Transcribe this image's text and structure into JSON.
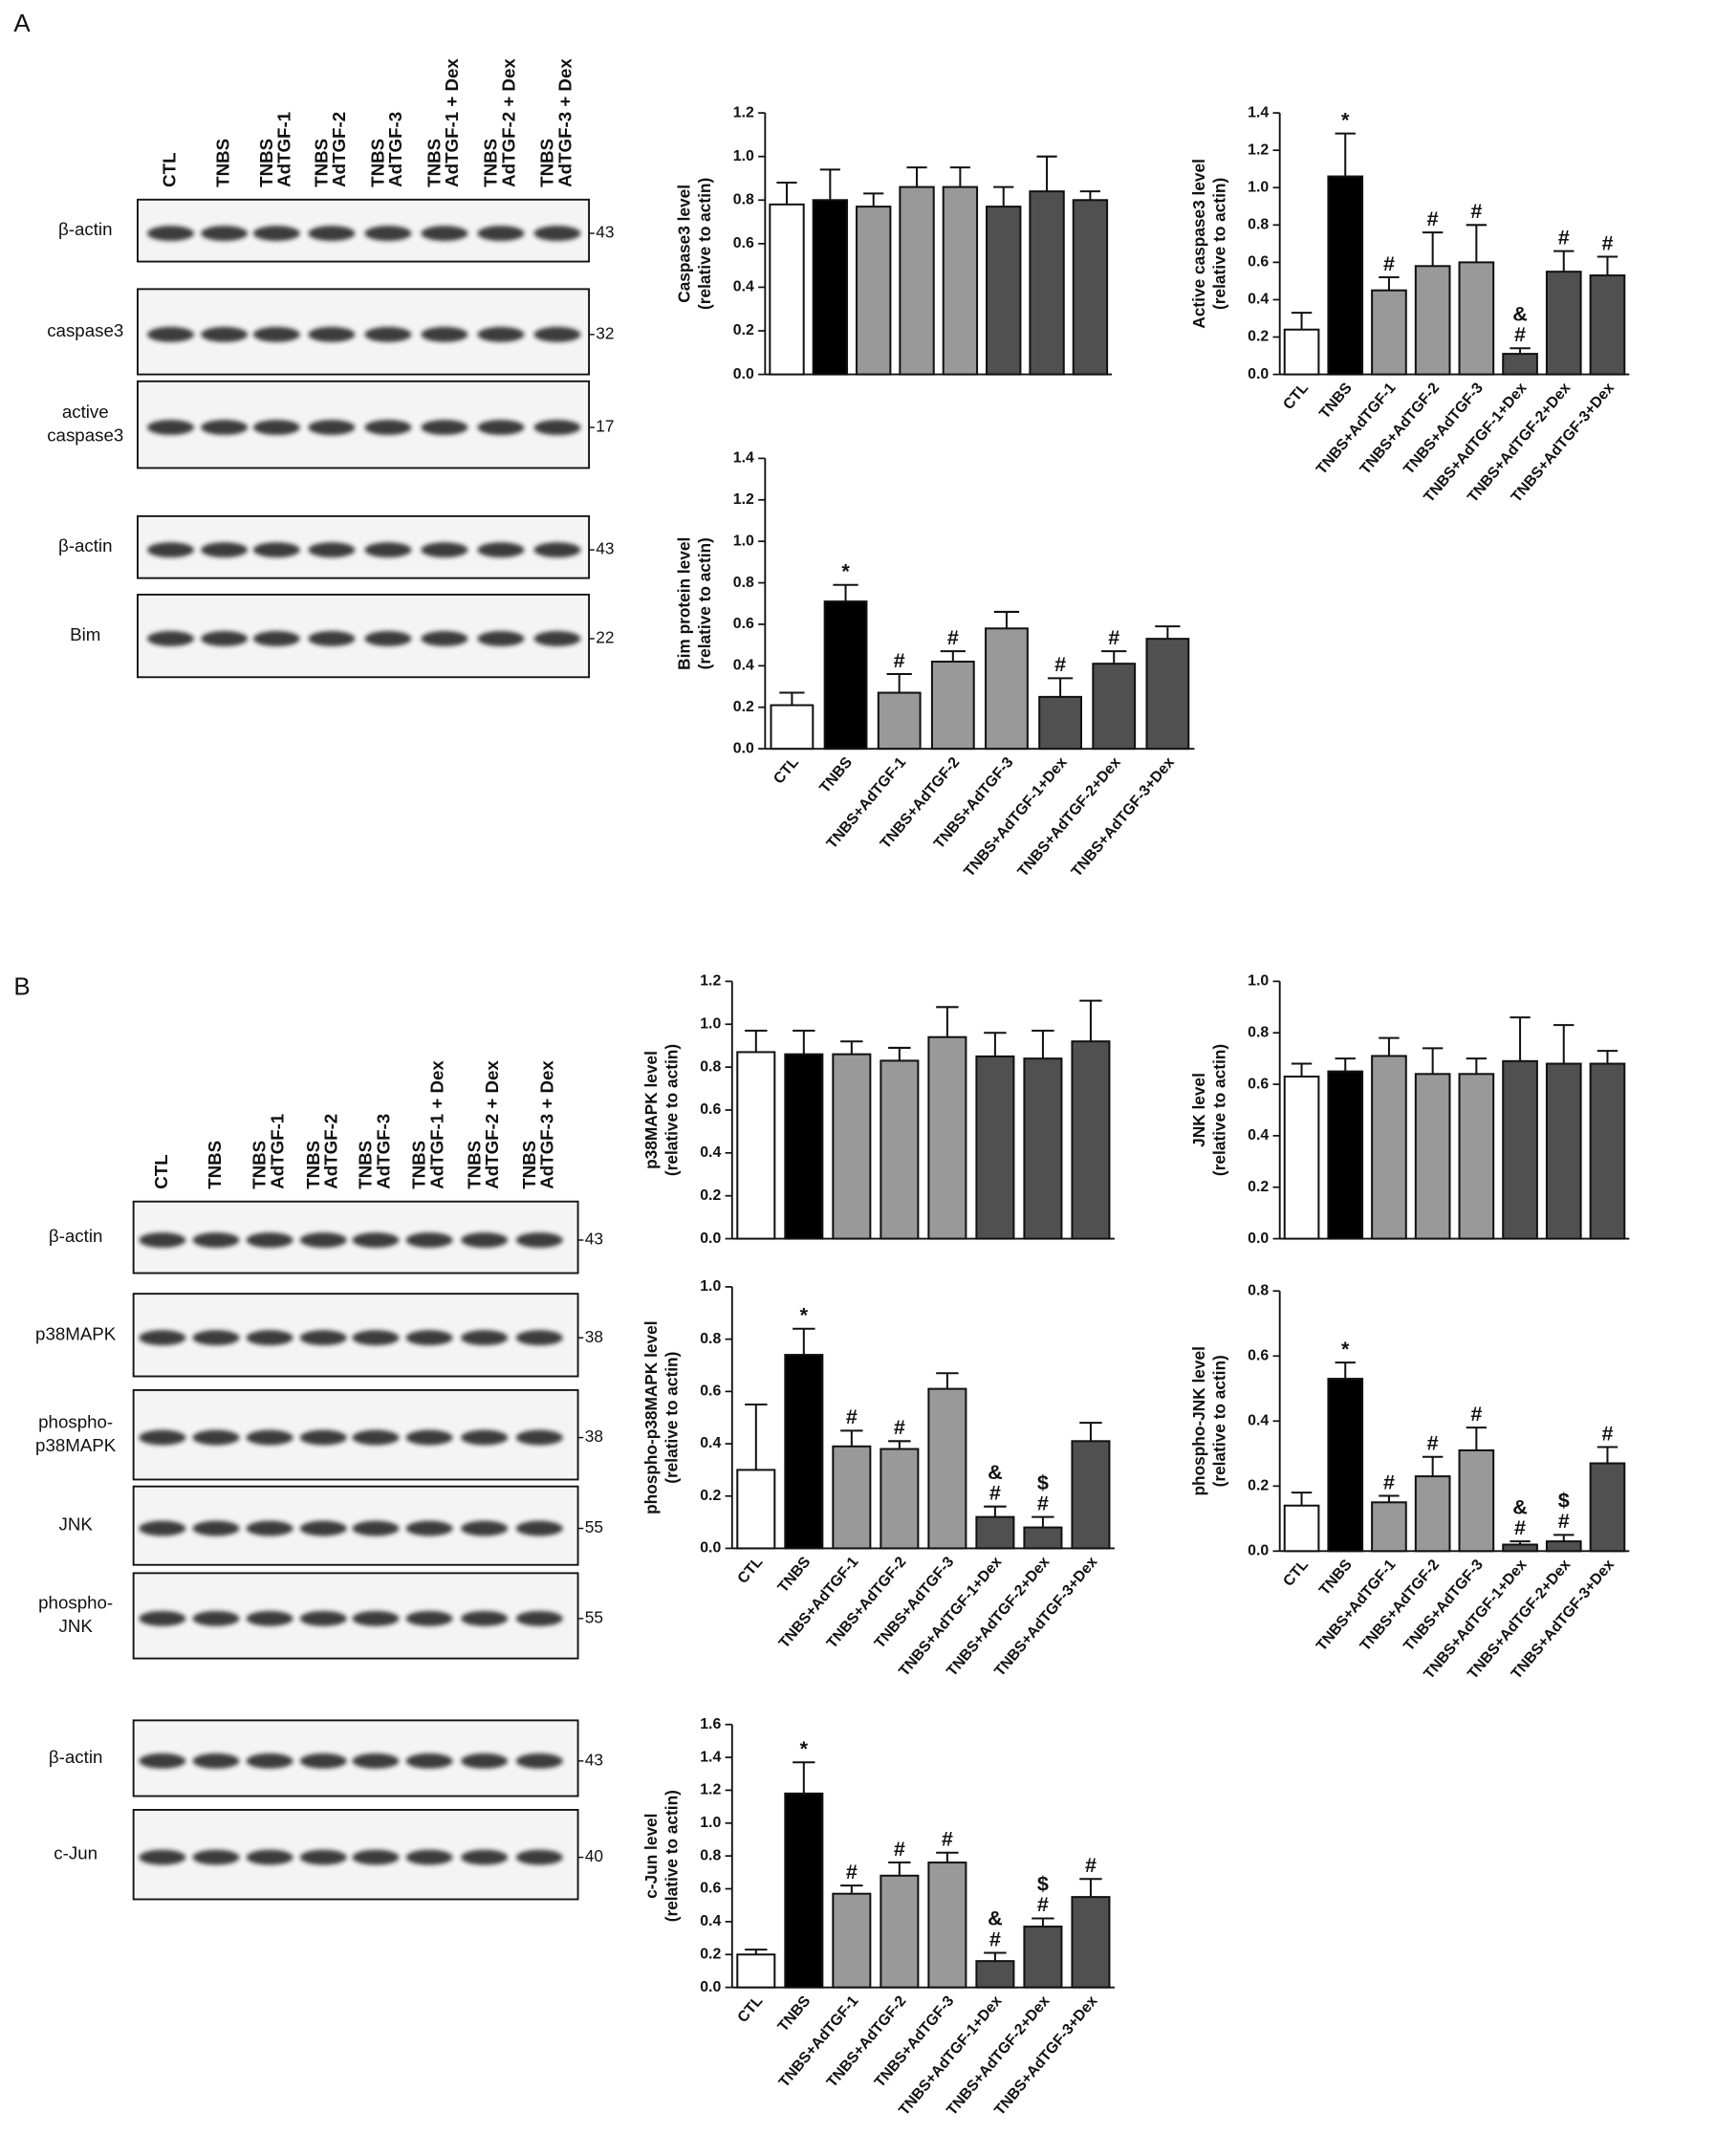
{
  "panels": [
    {
      "label": "A",
      "lanes": [
        [
          "CTL"
        ],
        [
          "TNBS"
        ],
        [
          "TNBS",
          "AdTGF-1"
        ],
        [
          "TNBS",
          "AdTGF-2"
        ],
        [
          "TNBS",
          "AdTGF-3"
        ],
        [
          "TNBS",
          "AdTGF-1 + Dex"
        ],
        [
          "TNBS",
          "AdTGF-2 + Dex"
        ],
        [
          "TNBS",
          "AdTGF-3 + Dex"
        ]
      ],
      "blot_groups": [
        [
          {
            "name": [
              "β-actin"
            ],
            "mw": 43
          },
          {
            "name": [
              "caspase3"
            ],
            "mw": 32
          },
          {
            "name": [
              "active",
              "caspase3"
            ],
            "mw": 17
          }
        ],
        [
          {
            "name": [
              "β-actin"
            ],
            "mw": 43
          },
          {
            "name": [
              "Bim"
            ],
            "mw": 22
          }
        ]
      ]
    },
    {
      "label": "B",
      "lanes": [
        [
          "CTL"
        ],
        [
          "TNBS"
        ],
        [
          "TNBS",
          "AdTGF-1"
        ],
        [
          "TNBS",
          "AdTGF-2"
        ],
        [
          "TNBS",
          "AdTGF-3"
        ],
        [
          "TNBS",
          "AdTGF-1 + Dex"
        ],
        [
          "TNBS",
          "AdTGF-2 + Dex"
        ],
        [
          "TNBS",
          "AdTGF-3 + Dex"
        ]
      ],
      "blot_groups": [
        [
          {
            "name": [
              "β-actin"
            ],
            "mw": 43
          },
          {
            "name": [
              "p38MAPK"
            ],
            "mw": 38
          },
          {
            "name": [
              "phospho-",
              "p38MAPK"
            ],
            "mw": 38
          },
          {
            "name": [
              "JNK"
            ],
            "mw": 55
          },
          {
            "name": [
              "phospho-",
              "JNK"
            ],
            "mw": 55
          }
        ],
        [
          {
            "name": [
              "β-actin"
            ],
            "mw": 43
          },
          {
            "name": [
              "c-Jun"
            ],
            "mw": 40
          }
        ]
      ]
    }
  ],
  "chart_data": [
    {
      "type": "bar",
      "ylabel": [
        "Caspase3 level",
        "(relative to actin)"
      ],
      "values": [
        0.78,
        0.8,
        0.77,
        0.86,
        0.86,
        0.77,
        0.84,
        0.8
      ],
      "errors": [
        0.1,
        0.14,
        0.06,
        0.09,
        0.09,
        0.09,
        0.16,
        0.04
      ],
      "colors": [
        "#ffffff",
        "#000000",
        "#999999",
        "#999999",
        "#999999",
        "#505050",
        "#505050",
        "#505050"
      ],
      "ylim": [
        0,
        1.2
      ],
      "yticks": [
        {
          "value": 0,
          "label": "0.0"
        },
        0.2,
        0.4,
        0.6,
        0.8,
        {
          "value": 1,
          "label": "1.0"
        },
        1.2
      ]
    },
    {
      "type": "bar",
      "ylabel": [
        "Active caspase3 level",
        "(relative to actin)"
      ],
      "categories": [
        "CTL",
        "TNBS",
        "TNBS+AdTGF-1",
        "TNBS+AdTGF-2",
        "TNBS+AdTGF-3",
        "TNBS+AdTGF-1+Dex",
        "TNBS+AdTGF-2+Dex",
        "TNBS+AdTGF-3+Dex"
      ],
      "values": [
        0.24,
        1.06,
        0.45,
        0.58,
        0.6,
        0.11,
        0.55,
        0.53
      ],
      "errors": [
        0.09,
        0.23,
        0.07,
        0.18,
        0.2,
        0.03,
        0.11,
        0.1
      ],
      "colors": [
        "#ffffff",
        "#000000",
        "#999999",
        "#999999",
        "#999999",
        "#505050",
        "#505050",
        "#505050"
      ],
      "annotations": [
        null,
        [
          "*"
        ],
        [
          "#"
        ],
        [
          "#"
        ],
        [
          "#"
        ],
        [
          "&",
          "#"
        ],
        [
          "#"
        ],
        [
          "#"
        ]
      ],
      "ylim": [
        0,
        1.4
      ],
      "yticks": [
        {
          "value": 0,
          "label": "0.0"
        },
        0.2,
        0.4,
        0.6,
        0.8,
        {
          "value": 1,
          "label": "1.0"
        },
        1.2,
        1.4
      ]
    },
    {
      "type": "bar",
      "ylabel": [
        "Bim protein level",
        "(relative to actin)"
      ],
      "categories": [
        "CTL",
        "TNBS",
        "TNBS+AdTGF-1",
        "TNBS+AdTGF-2",
        "TNBS+AdTGF-3",
        "TNBS+AdTGF-1+Dex",
        "TNBS+AdTGF-2+Dex",
        "TNBS+AdTGF-3+Dex"
      ],
      "values": [
        0.21,
        0.71,
        0.27,
        0.42,
        0.58,
        0.25,
        0.41,
        0.53
      ],
      "errors": [
        0.06,
        0.08,
        0.09,
        0.05,
        0.08,
        0.09,
        0.06,
        0.06
      ],
      "colors": [
        "#ffffff",
        "#000000",
        "#999999",
        "#999999",
        "#999999",
        "#505050",
        "#505050",
        "#505050"
      ],
      "annotations": [
        null,
        [
          "*"
        ],
        [
          "#"
        ],
        [
          "#"
        ],
        null,
        [
          "#"
        ],
        [
          "#"
        ],
        null
      ],
      "ylim": [
        0,
        1.4
      ],
      "yticks": [
        {
          "value": 0,
          "label": "0.0"
        },
        0.2,
        0.4,
        0.6,
        0.8,
        {
          "value": 1,
          "label": "1.0"
        },
        1.2,
        1.4
      ]
    },
    {
      "type": "bar",
      "ylabel": [
        "p38MAPK level",
        "(relative to actin)"
      ],
      "values": [
        0.87,
        0.86,
        0.86,
        0.83,
        0.94,
        0.85,
        0.84,
        0.92
      ],
      "errors": [
        0.1,
        0.11,
        0.06,
        0.06,
        0.14,
        0.11,
        0.13,
        0.19
      ],
      "colors": [
        "#ffffff",
        "#000000",
        "#999999",
        "#999999",
        "#999999",
        "#505050",
        "#505050",
        "#505050"
      ],
      "ylim": [
        0,
        1.2
      ],
      "yticks": [
        {
          "value": 0,
          "label": "0.0"
        },
        0.2,
        0.4,
        0.6,
        0.8,
        {
          "value": 1,
          "label": "1.0"
        },
        1.2
      ]
    },
    {
      "type": "bar",
      "ylabel": [
        "JNK level",
        "(relative to actin)"
      ],
      "values": [
        0.63,
        0.65,
        0.71,
        0.64,
        0.64,
        0.69,
        0.68,
        0.68
      ],
      "errors": [
        0.05,
        0.05,
        0.07,
        0.1,
        0.06,
        0.17,
        0.15,
        0.05
      ],
      "colors": [
        "#ffffff",
        "#000000",
        "#999999",
        "#999999",
        "#999999",
        "#505050",
        "#505050",
        "#505050"
      ],
      "ylim": [
        0,
        1
      ],
      "yticks": [
        {
          "value": 0,
          "label": "0.0"
        },
        0.2,
        0.4,
        0.6,
        0.8,
        {
          "value": 1,
          "label": "1.0"
        }
      ]
    },
    {
      "type": "bar",
      "ylabel": [
        "phospho-p38MAPK level",
        "(relative to actin)"
      ],
      "categories": [
        "CTL",
        "TNBS",
        "TNBS+AdTGF-1",
        "TNBS+AdTGF-2",
        "TNBS+AdTGF-3",
        "TNBS+AdTGF-1+Dex",
        "TNBS+AdTGF-2+Dex",
        "TNBS+AdTGF-3+Dex"
      ],
      "values": [
        0.3,
        0.74,
        0.39,
        0.38,
        0.61,
        0.12,
        0.08,
        0.41
      ],
      "errors": [
        0.25,
        0.1,
        0.06,
        0.03,
        0.06,
        0.04,
        0.04,
        0.07
      ],
      "colors": [
        "#ffffff",
        "#000000",
        "#999999",
        "#999999",
        "#999999",
        "#505050",
        "#505050",
        "#505050"
      ],
      "annotations": [
        null,
        [
          "*"
        ],
        [
          "#"
        ],
        [
          "#"
        ],
        null,
        [
          "&",
          "#"
        ],
        [
          "$",
          "#"
        ],
        null
      ],
      "ylim": [
        0,
        1
      ],
      "yticks": [
        {
          "value": 0,
          "label": "0.0"
        },
        0.2,
        0.4,
        0.6,
        0.8,
        {
          "value": 1,
          "label": "1.0"
        }
      ]
    },
    {
      "type": "bar",
      "ylabel": [
        "phospho-JNK level",
        "(relative to actin)"
      ],
      "categories": [
        "CTL",
        "TNBS",
        "TNBS+AdTGF-1",
        "TNBS+AdTGF-2",
        "TNBS+AdTGF-3",
        "TNBS+AdTGF-1+Dex",
        "TNBS+AdTGF-2+Dex",
        "TNBS+AdTGF-3+Dex"
      ],
      "values": [
        0.14,
        0.53,
        0.15,
        0.23,
        0.31,
        0.02,
        0.03,
        0.27
      ],
      "errors": [
        0.04,
        0.05,
        0.02,
        0.06,
        0.07,
        0.01,
        0.02,
        0.05
      ],
      "colors": [
        "#ffffff",
        "#000000",
        "#999999",
        "#999999",
        "#999999",
        "#505050",
        "#505050",
        "#505050"
      ],
      "annotations": [
        null,
        [
          "*"
        ],
        [
          "#"
        ],
        [
          "#"
        ],
        [
          "#"
        ],
        [
          "&",
          "#"
        ],
        [
          "$",
          "#"
        ],
        [
          "#"
        ]
      ],
      "ylim": [
        0,
        0.8
      ],
      "yticks": [
        {
          "value": 0,
          "label": "0.0"
        },
        0.2,
        0.4,
        0.6,
        0.8
      ]
    },
    {
      "type": "bar",
      "ylabel": [
        "c-Jun level",
        "(relative to actin)"
      ],
      "categories": [
        "CTL",
        "TNBS",
        "TNBS+AdTGF-1",
        "TNBS+AdTGF-2",
        "TNBS+AdTGF-3",
        "TNBS+AdTGF-1+Dex",
        "TNBS+AdTGF-2+Dex",
        "TNBS+AdTGF-3+Dex"
      ],
      "values": [
        0.2,
        1.18,
        0.57,
        0.68,
        0.76,
        0.16,
        0.37,
        0.55
      ],
      "errors": [
        0.03,
        0.19,
        0.05,
        0.08,
        0.06,
        0.05,
        0.05,
        0.11
      ],
      "colors": [
        "#ffffff",
        "#000000",
        "#999999",
        "#999999",
        "#999999",
        "#505050",
        "#505050",
        "#505050"
      ],
      "annotations": [
        null,
        [
          "*"
        ],
        [
          "#"
        ],
        [
          "#"
        ],
        [
          "#"
        ],
        [
          "&",
          "#"
        ],
        [
          "$",
          "#"
        ],
        [
          "#"
        ]
      ],
      "ylim": [
        0,
        1.6
      ],
      "yticks": [
        {
          "value": 0,
          "label": "0.0"
        },
        0.2,
        0.4,
        0.6,
        0.8,
        {
          "value": 1,
          "label": "1.0"
        },
        1.2,
        1.4,
        1.6
      ]
    }
  ]
}
